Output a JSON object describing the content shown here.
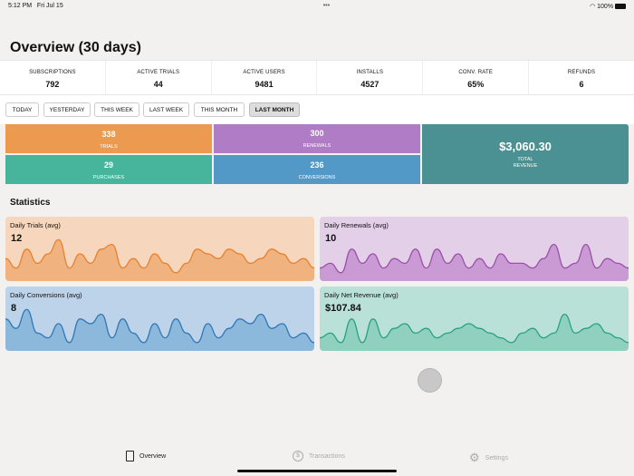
{
  "status": {
    "time": "5:12 PM",
    "date": "Fri Jul 15",
    "battery": "100%"
  },
  "title": "Overview (30 days)",
  "stats": [
    {
      "label": "SUBSCRIPTIONS",
      "value": "792"
    },
    {
      "label": "ACTIVE TRIALS",
      "value": "44"
    },
    {
      "label": "ACTIVE USERS",
      "value": "9481"
    },
    {
      "label": "INSTALLS",
      "value": "4527"
    },
    {
      "label": "CONV. RATE",
      "value": "65%"
    },
    {
      "label": "REFUNDS",
      "value": "6"
    }
  ],
  "filters": [
    "TODAY",
    "YESTERDAY",
    "THIS WEEK",
    "LAST WEEK",
    "THIS MONTH",
    "LAST MONTH"
  ],
  "selected_filter": "LAST MONTH",
  "tiles": {
    "trials": {
      "value": "338",
      "label": "TRIALS"
    },
    "renewals": {
      "value": "300",
      "label": "RENEWALS"
    },
    "purchases": {
      "value": "29",
      "label": "PURCHASES"
    },
    "conversions": {
      "value": "236",
      "label": "CONVERSIONS"
    },
    "revenue": {
      "value": "$3,060.30",
      "label1": "TOTAL",
      "label2": "REVENUE"
    }
  },
  "statistics_heading": "Statistics",
  "cards": [
    {
      "title": "Daily Trials (avg)",
      "value": "12",
      "bg": "#f6d7bd",
      "fill": "#f0b27f",
      "line": "#e8802e",
      "series": [
        0.4,
        0.2,
        0.6,
        0.3,
        0.5,
        0.8,
        0.2,
        0.5,
        0.3,
        0.6,
        0.7,
        0.2,
        0.4,
        0.2,
        0.5,
        0.3,
        0.1,
        0.3,
        0.6,
        0.5,
        0.4,
        0.6,
        0.5,
        0.3,
        0.4,
        0.6,
        0.5,
        0.3,
        0.4,
        0.2
      ]
    },
    {
      "title": "Daily Renewals (avg)",
      "value": "10",
      "bg": "#e4cfe8",
      "fill": "#c99ad3",
      "line": "#9b4fab",
      "series": [
        0.2,
        0.3,
        0.1,
        0.6,
        0.3,
        0.5,
        0.2,
        0.4,
        0.3,
        0.6,
        0.2,
        0.6,
        0.3,
        0.5,
        0.2,
        0.4,
        0.2,
        0.5,
        0.3,
        0.3,
        0.2,
        0.4,
        0.7,
        0.2,
        0.3,
        0.7,
        0.2,
        0.4,
        0.3,
        0.2
      ]
    },
    {
      "title": "Daily Conversions (avg)",
      "value": "8",
      "bg": "#bcd3ea",
      "fill": "#8cb8dc",
      "line": "#2f77b6",
      "series": [
        0.6,
        0.4,
        0.8,
        0.3,
        0.2,
        0.5,
        0.1,
        0.6,
        0.5,
        0.7,
        0.2,
        0.6,
        0.3,
        0.1,
        0.5,
        0.2,
        0.6,
        0.3,
        0.1,
        0.5,
        0.2,
        0.4,
        0.6,
        0.5,
        0.7,
        0.4,
        0.5,
        0.2,
        0.3,
        0.1
      ]
    },
    {
      "title": "Daily Net Revenue (avg)",
      "value": "$107.84",
      "bg": "#b9e1d7",
      "fill": "#8fd0bf",
      "line": "#27a184",
      "series": [
        0.2,
        0.3,
        0.1,
        0.6,
        0.1,
        0.6,
        0.2,
        0.4,
        0.5,
        0.3,
        0.4,
        0.2,
        0.3,
        0.4,
        0.5,
        0.4,
        0.3,
        0.2,
        0.1,
        0.3,
        0.4,
        0.2,
        0.3,
        0.7,
        0.3,
        0.4,
        0.5,
        0.3,
        0.2,
        0.1
      ]
    }
  ],
  "tabs": [
    {
      "label": "Overview"
    },
    {
      "label": "Transactions"
    },
    {
      "label": "Settings"
    }
  ]
}
